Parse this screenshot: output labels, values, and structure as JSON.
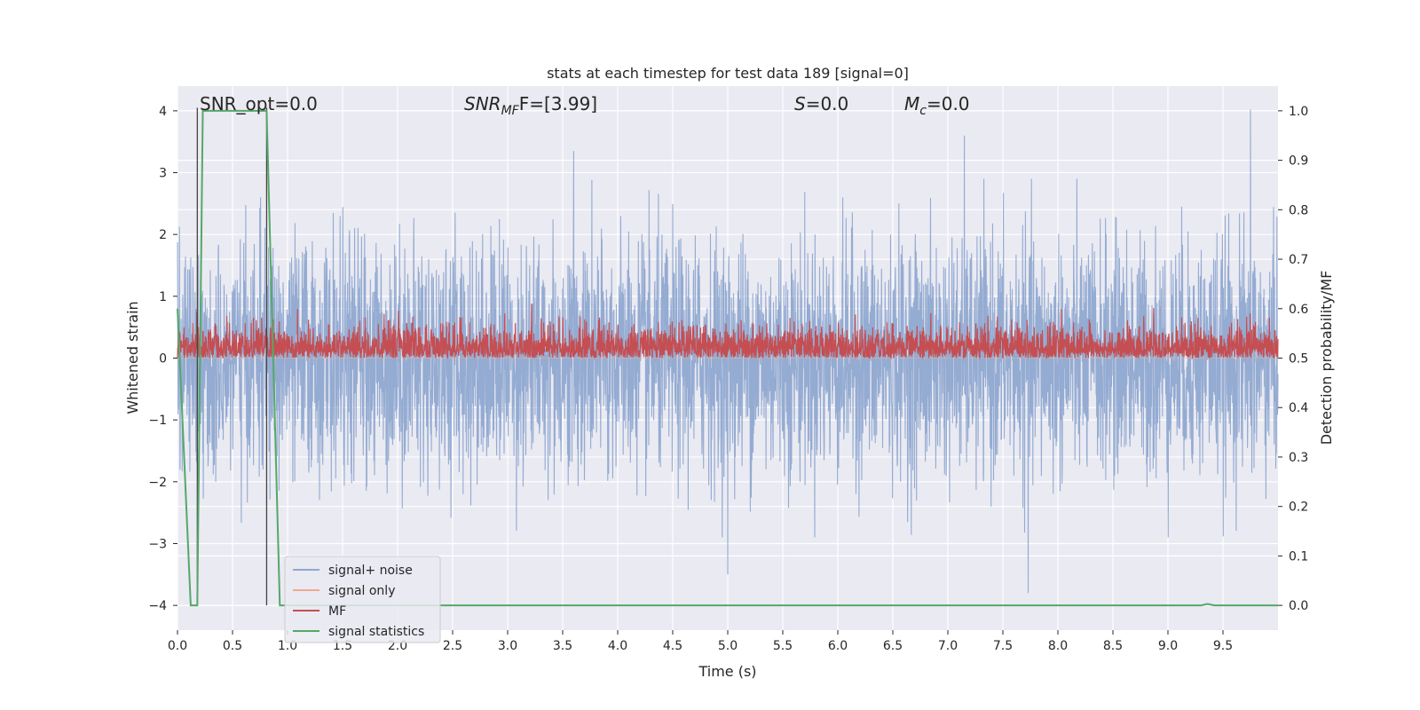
{
  "chart_data": {
    "type": "line",
    "title": "stats at each timestep for test data 189 [signal=0]",
    "xlabel": "Time (s)",
    "ylabel": "Whitened strain",
    "y2label": "Detection probability/MF",
    "xlim": [
      0.0,
      10.0
    ],
    "ylim": [
      -4.4,
      4.4
    ],
    "y2lim": [
      -0.05,
      1.05
    ],
    "xticks": [
      0.0,
      0.5,
      1.0,
      1.5,
      2.0,
      2.5,
      3.0,
      3.5,
      4.0,
      4.5,
      5.0,
      5.5,
      6.0,
      6.5,
      7.0,
      7.5,
      8.0,
      8.5,
      9.0,
      9.5
    ],
    "xtick_labels": [
      "0.0",
      "0.5",
      "1.0",
      "1.5",
      "2.0",
      "2.5",
      "3.0",
      "3.5",
      "4.0",
      "4.5",
      "5.0",
      "5.5",
      "6.0",
      "6.5",
      "7.0",
      "7.5",
      "8.0",
      "8.5",
      "9.0",
      "9.5"
    ],
    "yticks": [
      4,
      3,
      2,
      1,
      0,
      -1,
      -2,
      -3,
      -4
    ],
    "ytick_labels": [
      "4",
      "3",
      "2",
      "1",
      "0",
      "−1",
      "−2",
      "−3",
      "−4"
    ],
    "y2ticks": [
      1.0,
      0.9,
      0.8,
      0.7,
      0.6,
      0.5,
      0.4,
      0.3,
      0.2,
      0.1,
      0.0
    ],
    "y2tick_labels": [
      "1.0",
      "0.9",
      "0.8",
      "0.7",
      "0.6",
      "0.5",
      "0.4",
      "0.3",
      "0.2",
      "0.1",
      "0.0"
    ],
    "grid": true,
    "legend_position": "lower-left",
    "annotations": {
      "snr_opt": "SNR_opt=0.0",
      "snr_mf_main": "SNR",
      "snr_mf_sub": "MF",
      "snr_mf_value": "F=[3.99]",
      "s_var": "S",
      "s_value": "=0.0",
      "mc_var": "M",
      "mc_sub": "c",
      "mc_value": "=0.0"
    },
    "series": [
      {
        "name": "signal+ noise",
        "color": "#8fa8d0",
        "axis": "left",
        "kind": "noise",
        "sample_rate_hz": 400,
        "typical_range": [
          -2.3,
          2.3
        ],
        "y_max_observed": 4.02,
        "y_min_observed": -3.8,
        "notable_peaks": [
          {
            "x": 9.75,
            "y": 4.02
          },
          {
            "x": 7.15,
            "y": 3.6
          },
          {
            "x": 3.6,
            "y": 3.35
          },
          {
            "x": 7.73,
            "y": -3.8
          },
          {
            "x": 5.0,
            "y": -3.5
          }
        ]
      },
      {
        "name": "signal only",
        "color": "#f0a98a",
        "axis": "left",
        "kind": "flat",
        "values_constant": 0.0
      },
      {
        "name": "MF",
        "color": "#c44e52",
        "axis": "right",
        "kind": "noise",
        "sample_rate_hz": 400,
        "typical_range": [
          0.5,
          0.58
        ],
        "y_max_observed": 0.61
      },
      {
        "name": "signal statistics",
        "color": "#55a868",
        "axis": "right",
        "kind": "line",
        "x": [
          0.0,
          0.12,
          0.18,
          0.23,
          0.26,
          0.81,
          0.93,
          9.3,
          9.36,
          9.42,
          10.0
        ],
        "y": [
          0.6,
          0.0,
          0.0,
          1.0,
          1.0,
          1.0,
          0.0,
          0.0,
          0.003,
          0.0,
          0.0
        ]
      }
    ],
    "vertical_markers": [
      {
        "x": 0.18,
        "y_top": 4.05,
        "y2_bottom": 0.0,
        "color": "#444444"
      },
      {
        "x": 0.81,
        "y_top": 4.05,
        "y2_bottom": 0.0,
        "color": "#444444"
      }
    ]
  }
}
